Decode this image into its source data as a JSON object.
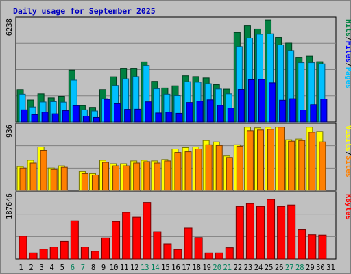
{
  "chart_data": {
    "type": "bar",
    "title": "Daily usage for September 2025",
    "categories": [
      "1",
      "2",
      "3",
      "4",
      "5",
      "6",
      "7",
      "8",
      "9",
      "10",
      "11",
      "12",
      "13",
      "14",
      "15",
      "16",
      "17",
      "18",
      "19",
      "20",
      "21",
      "22",
      "23",
      "24",
      "25",
      "26",
      "27",
      "28",
      "29",
      "30",
      "31"
    ],
    "weekend_days": [
      "6",
      "7",
      "13",
      "14",
      "20",
      "21",
      "27",
      "28"
    ],
    "panels": [
      {
        "name": "pages-files-hits",
        "ymax_label": "6238",
        "ylim": [
          0,
          6238
        ],
        "axis_label_parts": [
          "Pages",
          "/",
          "Files",
          "/",
          "Hits"
        ],
        "series": [
          {
            "name": "Hits",
            "values": [
              1950,
              1320,
              1700,
              1450,
              1550,
              3130,
              980,
              880,
              1950,
              2720,
              3240,
              3240,
              3620,
              2450,
              2050,
              2180,
              2780,
              2730,
              2650,
              2250,
              1980,
              5400,
              5800,
              5600,
              6150,
              5100,
              4750,
              3900,
              3960,
              3630,
              0
            ]
          },
          {
            "name": "Files",
            "values": [
              1680,
              900,
              1200,
              1220,
              1190,
              2520,
              730,
              660,
              1400,
              2200,
              2600,
              2730,
              3400,
              2000,
              1680,
              1590,
              2430,
              2400,
              2310,
              1990,
              1700,
              4550,
              5060,
              5290,
              5320,
              4650,
              4300,
              3570,
              3570,
              3500,
              0
            ]
          },
          {
            "name": "Pages",
            "values": [
              730,
              440,
              590,
              490,
              680,
              980,
              350,
              270,
              1360,
              1100,
              760,
              770,
              1210,
              540,
              590,
              520,
              1170,
              1250,
              1330,
              1000,
              840,
              1960,
              2540,
              2560,
              2360,
              1310,
              1400,
              720,
              1040,
              1380,
              0
            ]
          }
        ],
        "colors": [
          "#008040",
          "#00c0ff",
          "#0000ff"
        ]
      },
      {
        "name": "sites-visits",
        "ymax_label": "936",
        "ylim": [
          0,
          936
        ],
        "axis_label_parts": [
          "Sites",
          "/",
          "Visits"
        ],
        "series": [
          {
            "name": "Visits",
            "values": [
              340,
              430,
              620,
              320,
              350,
              0,
              270,
              240,
              430,
              380,
              380,
              420,
              430,
              420,
              440,
              590,
              610,
              620,
              710,
              690,
              490,
              650,
              900,
              890,
              900,
              900,
              720,
              730,
              900,
              840,
              0
            ]
          },
          {
            "name": "Sites",
            "values": [
              320,
              390,
              570,
              300,
              330,
              0,
              240,
              220,
              400,
              350,
              350,
              390,
              410,
              390,
              420,
              540,
              550,
              590,
              650,
              640,
              470,
              630,
              850,
              860,
              870,
              900,
              700,
              710,
              830,
              690,
              0
            ]
          }
        ],
        "colors": [
          "#ffff00",
          "#ff8000"
        ]
      },
      {
        "name": "kbytes",
        "ymax_label": "187646",
        "ylim": [
          0,
          187646
        ],
        "axis_label_parts": [
          "KBytes"
        ],
        "series": [
          {
            "name": "KBytes",
            "values": [
              65000,
              17000,
              28000,
              34000,
              50000,
              109000,
              34000,
              22000,
              60000,
              107000,
              133000,
              119000,
              161000,
              78000,
              43000,
              27000,
              88000,
              61000,
              17000,
              17000,
              32000,
              150000,
              158000,
              150000,
              170000,
              150000,
              154000,
              83000,
              69000,
              68000,
              0
            ]
          }
        ],
        "colors": [
          "#ff0000"
        ]
      }
    ]
  }
}
